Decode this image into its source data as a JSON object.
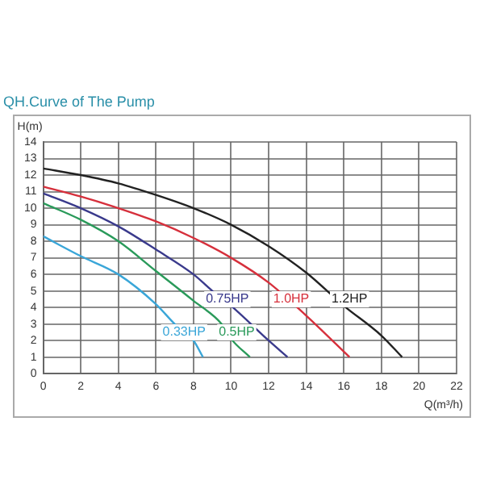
{
  "chart_data": {
    "type": "line",
    "title": "QH.Curve of The Pump",
    "xlabel": "Q(m³/h)",
    "ylabel": "H(m)",
    "xlim": [
      0,
      22
    ],
    "xticks": [
      0,
      2,
      4,
      6,
      8,
      10,
      12,
      14,
      16,
      18,
      20,
      22
    ],
    "ylim": [
      0,
      14
    ],
    "yticks": [
      0,
      1,
      2,
      3,
      4,
      5,
      6,
      7,
      8,
      9,
      10,
      11,
      12,
      13,
      14
    ],
    "grid": true,
    "legend": false,
    "marker": "none",
    "series": [
      {
        "color": "#222222",
        "x": [
          0,
          2,
          4,
          6,
          8,
          10,
          12,
          14,
          16,
          18,
          19.1
        ],
        "values": [
          12.4,
          12.0,
          11.5,
          10.8,
          10.0,
          9.0,
          7.7,
          6.1,
          4.1,
          2.3,
          1.0
        ]
      },
      {
        "color": "#d6303c",
        "x": [
          0,
          2,
          4,
          6,
          8,
          10,
          12,
          14,
          16.3
        ],
        "values": [
          11.3,
          10.7,
          10.0,
          9.2,
          8.2,
          7.0,
          5.5,
          3.5,
          1.0
        ]
      },
      {
        "color": "#3a3a8c",
        "x": [
          0,
          2,
          4,
          6,
          8,
          9,
          10,
          12,
          13
        ],
        "values": [
          10.9,
          10.0,
          8.9,
          7.5,
          6.0,
          5.0,
          4.1,
          2.0,
          1.0
        ]
      },
      {
        "color": "#2a9a5a",
        "x": [
          0,
          2,
          4,
          6,
          8,
          9.5,
          10,
          11
        ],
        "values": [
          10.3,
          9.3,
          8.0,
          6.2,
          4.4,
          3.0,
          2.1,
          1.0
        ]
      },
      {
        "color": "#3aa6d8",
        "x": [
          0,
          2,
          4,
          6,
          7,
          8,
          8.5
        ],
        "values": [
          8.3,
          7.1,
          6.0,
          4.2,
          3.0,
          2.0,
          1.0
        ]
      }
    ],
    "annotations": [
      {
        "text": "1.2HP",
        "x": 16.3,
        "y": 4.5
      },
      {
        "text": "1.0HP",
        "x": 13.2,
        "y": 4.5
      },
      {
        "text": "0.75HP",
        "x": 9.8,
        "y": 4.5
      },
      {
        "text": "0.5HP",
        "x": 10.3,
        "y": 2.5
      },
      {
        "text": "0.33HP",
        "x": 7.5,
        "y": 2.5
      }
    ]
  }
}
